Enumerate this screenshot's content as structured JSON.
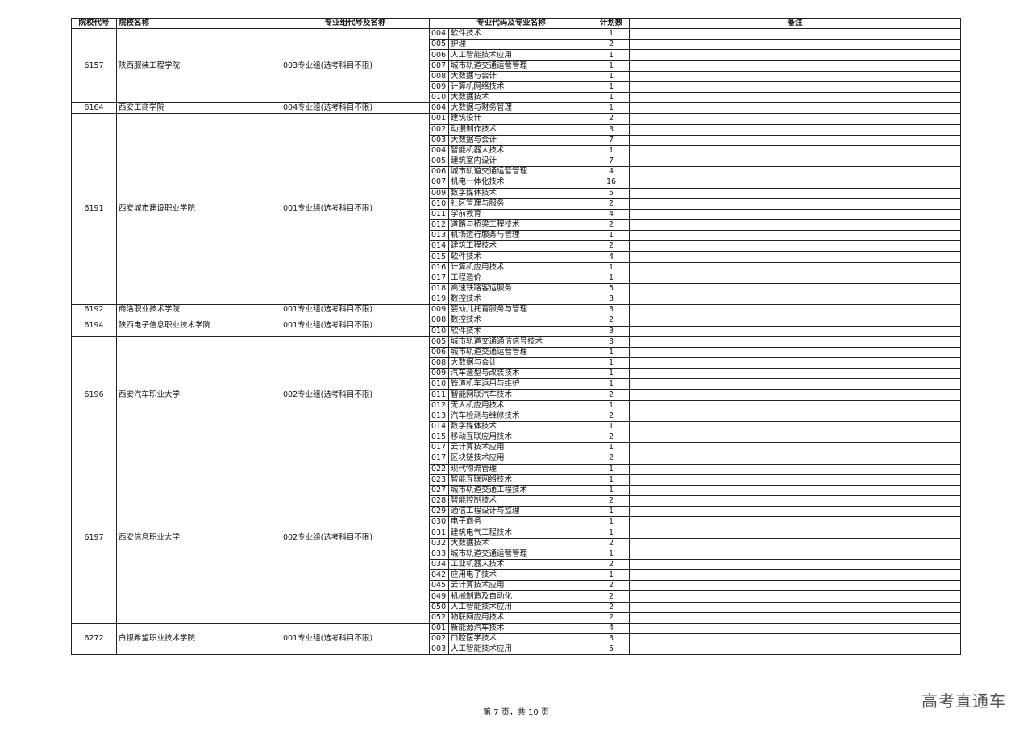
{
  "headers": {
    "code": "院校代号",
    "name": "院校名称",
    "group": "专业组代号及名称",
    "major": "专业代码及专业名称",
    "plan": "计划数",
    "note": "备注"
  },
  "colleges": [
    {
      "code": "6157",
      "name": "陕西服装工程学院",
      "group": "003专业组(选考科目不限)",
      "majors": [
        [
          "004",
          "软件技术",
          "1"
        ],
        [
          "005",
          "护理",
          "2"
        ],
        [
          "006",
          "人工智能技术应用",
          "1"
        ],
        [
          "007",
          "城市轨道交通运营管理",
          "1"
        ],
        [
          "008",
          "大数据与会计",
          "1"
        ],
        [
          "009",
          "计算机网络技术",
          "1"
        ],
        [
          "010",
          "大数据技术",
          "1"
        ]
      ]
    },
    {
      "code": "6164",
      "name": "西安工商学院",
      "group": "004专业组(选考科目不限)",
      "majors": [
        [
          "004",
          "大数据与财务管理",
          "1"
        ]
      ]
    },
    {
      "code": "6191",
      "name": "西安城市建设职业学院",
      "group": "001专业组(选考科目不限)",
      "majors": [
        [
          "001",
          "建筑设计",
          "2"
        ],
        [
          "002",
          "动漫制作技术",
          "3"
        ],
        [
          "003",
          "大数据与会计",
          "7"
        ],
        [
          "004",
          "智能机器人技术",
          "1"
        ],
        [
          "005",
          "建筑室内设计",
          "7"
        ],
        [
          "006",
          "城市轨道交通运营管理",
          "4"
        ],
        [
          "007",
          "机电一体化技术",
          "16"
        ],
        [
          "009",
          "数字媒体技术",
          "5"
        ],
        [
          "010",
          "社区管理与服务",
          "2"
        ],
        [
          "011",
          "学前教育",
          "4"
        ],
        [
          "012",
          "道路与桥梁工程技术",
          "2"
        ],
        [
          "013",
          "机场运行服务与管理",
          "1"
        ],
        [
          "014",
          "建筑工程技术",
          "2"
        ],
        [
          "015",
          "软件技术",
          "4"
        ],
        [
          "016",
          "计算机应用技术",
          "1"
        ],
        [
          "017",
          "工程造价",
          "1"
        ],
        [
          "018",
          "高速铁路客运服务",
          "5"
        ],
        [
          "019",
          "数控技术",
          "3"
        ]
      ]
    },
    {
      "code": "6192",
      "name": "商洛职业技术学院",
      "group": "001专业组(选考科目不限)",
      "majors": [
        [
          "009",
          "婴幼儿托育服务与管理",
          "3"
        ]
      ]
    },
    {
      "code": "6194",
      "name": "陕西电子信息职业技术学院",
      "group": "001专业组(选考科目不限)",
      "majors": [
        [
          "008",
          "数控技术",
          "2"
        ],
        [
          "010",
          "软件技术",
          "3"
        ]
      ]
    },
    {
      "code": "6196",
      "name": "西安汽车职业大学",
      "group": "002专业组(选考科目不限)",
      "majors": [
        [
          "005",
          "城市轨道交通通信信号技术",
          "3"
        ],
        [
          "006",
          "城市轨道交通运营管理",
          "1"
        ],
        [
          "008",
          "大数据与会计",
          "1"
        ],
        [
          "009",
          "汽车造型与改装技术",
          "1"
        ],
        [
          "010",
          "铁道机车运用与维护",
          "1"
        ],
        [
          "011",
          "智能网联汽车技术",
          "2"
        ],
        [
          "012",
          "无人机应用技术",
          "1"
        ],
        [
          "013",
          "汽车检测与维修技术",
          "2"
        ],
        [
          "014",
          "数字媒体技术",
          "1"
        ],
        [
          "015",
          "移动互联应用技术",
          "2"
        ],
        [
          "017",
          "云计算技术应用",
          "1"
        ]
      ]
    },
    {
      "code": "6197",
      "name": "西安信息职业大学",
      "group": "002专业组(选考科目不限)",
      "majors": [
        [
          "017",
          "区块链技术应用",
          "2"
        ],
        [
          "022",
          "现代物流管理",
          "1"
        ],
        [
          "023",
          "智能互联网络技术",
          "1"
        ],
        [
          "027",
          "城市轨道交通工程技术",
          "1"
        ],
        [
          "028",
          "智能控制技术",
          "2"
        ],
        [
          "029",
          "通信工程设计与监理",
          "1"
        ],
        [
          "030",
          "电子商务",
          "1"
        ],
        [
          "031",
          "建筑电气工程技术",
          "1"
        ],
        [
          "032",
          "大数据技术",
          "2"
        ],
        [
          "033",
          "城市轨道交通运营管理",
          "1"
        ],
        [
          "034",
          "工业机器人技术",
          "2"
        ],
        [
          "042",
          "应用电子技术",
          "1"
        ],
        [
          "045",
          "云计算技术应用",
          "2"
        ],
        [
          "049",
          "机械制造及自动化",
          "2"
        ],
        [
          "050",
          "人工智能技术应用",
          "2"
        ],
        [
          "052",
          "物联网应用技术",
          "2"
        ]
      ]
    },
    {
      "code": "6272",
      "name": "白银希望职业技术学院",
      "group": "001专业组(选考科目不限)",
      "majors": [
        [
          "001",
          "新能源汽车技术",
          "4"
        ],
        [
          "002",
          "口腔医学技术",
          "3"
        ],
        [
          "003",
          "人工智能技术应用",
          "5"
        ]
      ]
    }
  ],
  "footer": {
    "page": "第 7 页，共 10 页"
  },
  "watermark": "高考直通车"
}
